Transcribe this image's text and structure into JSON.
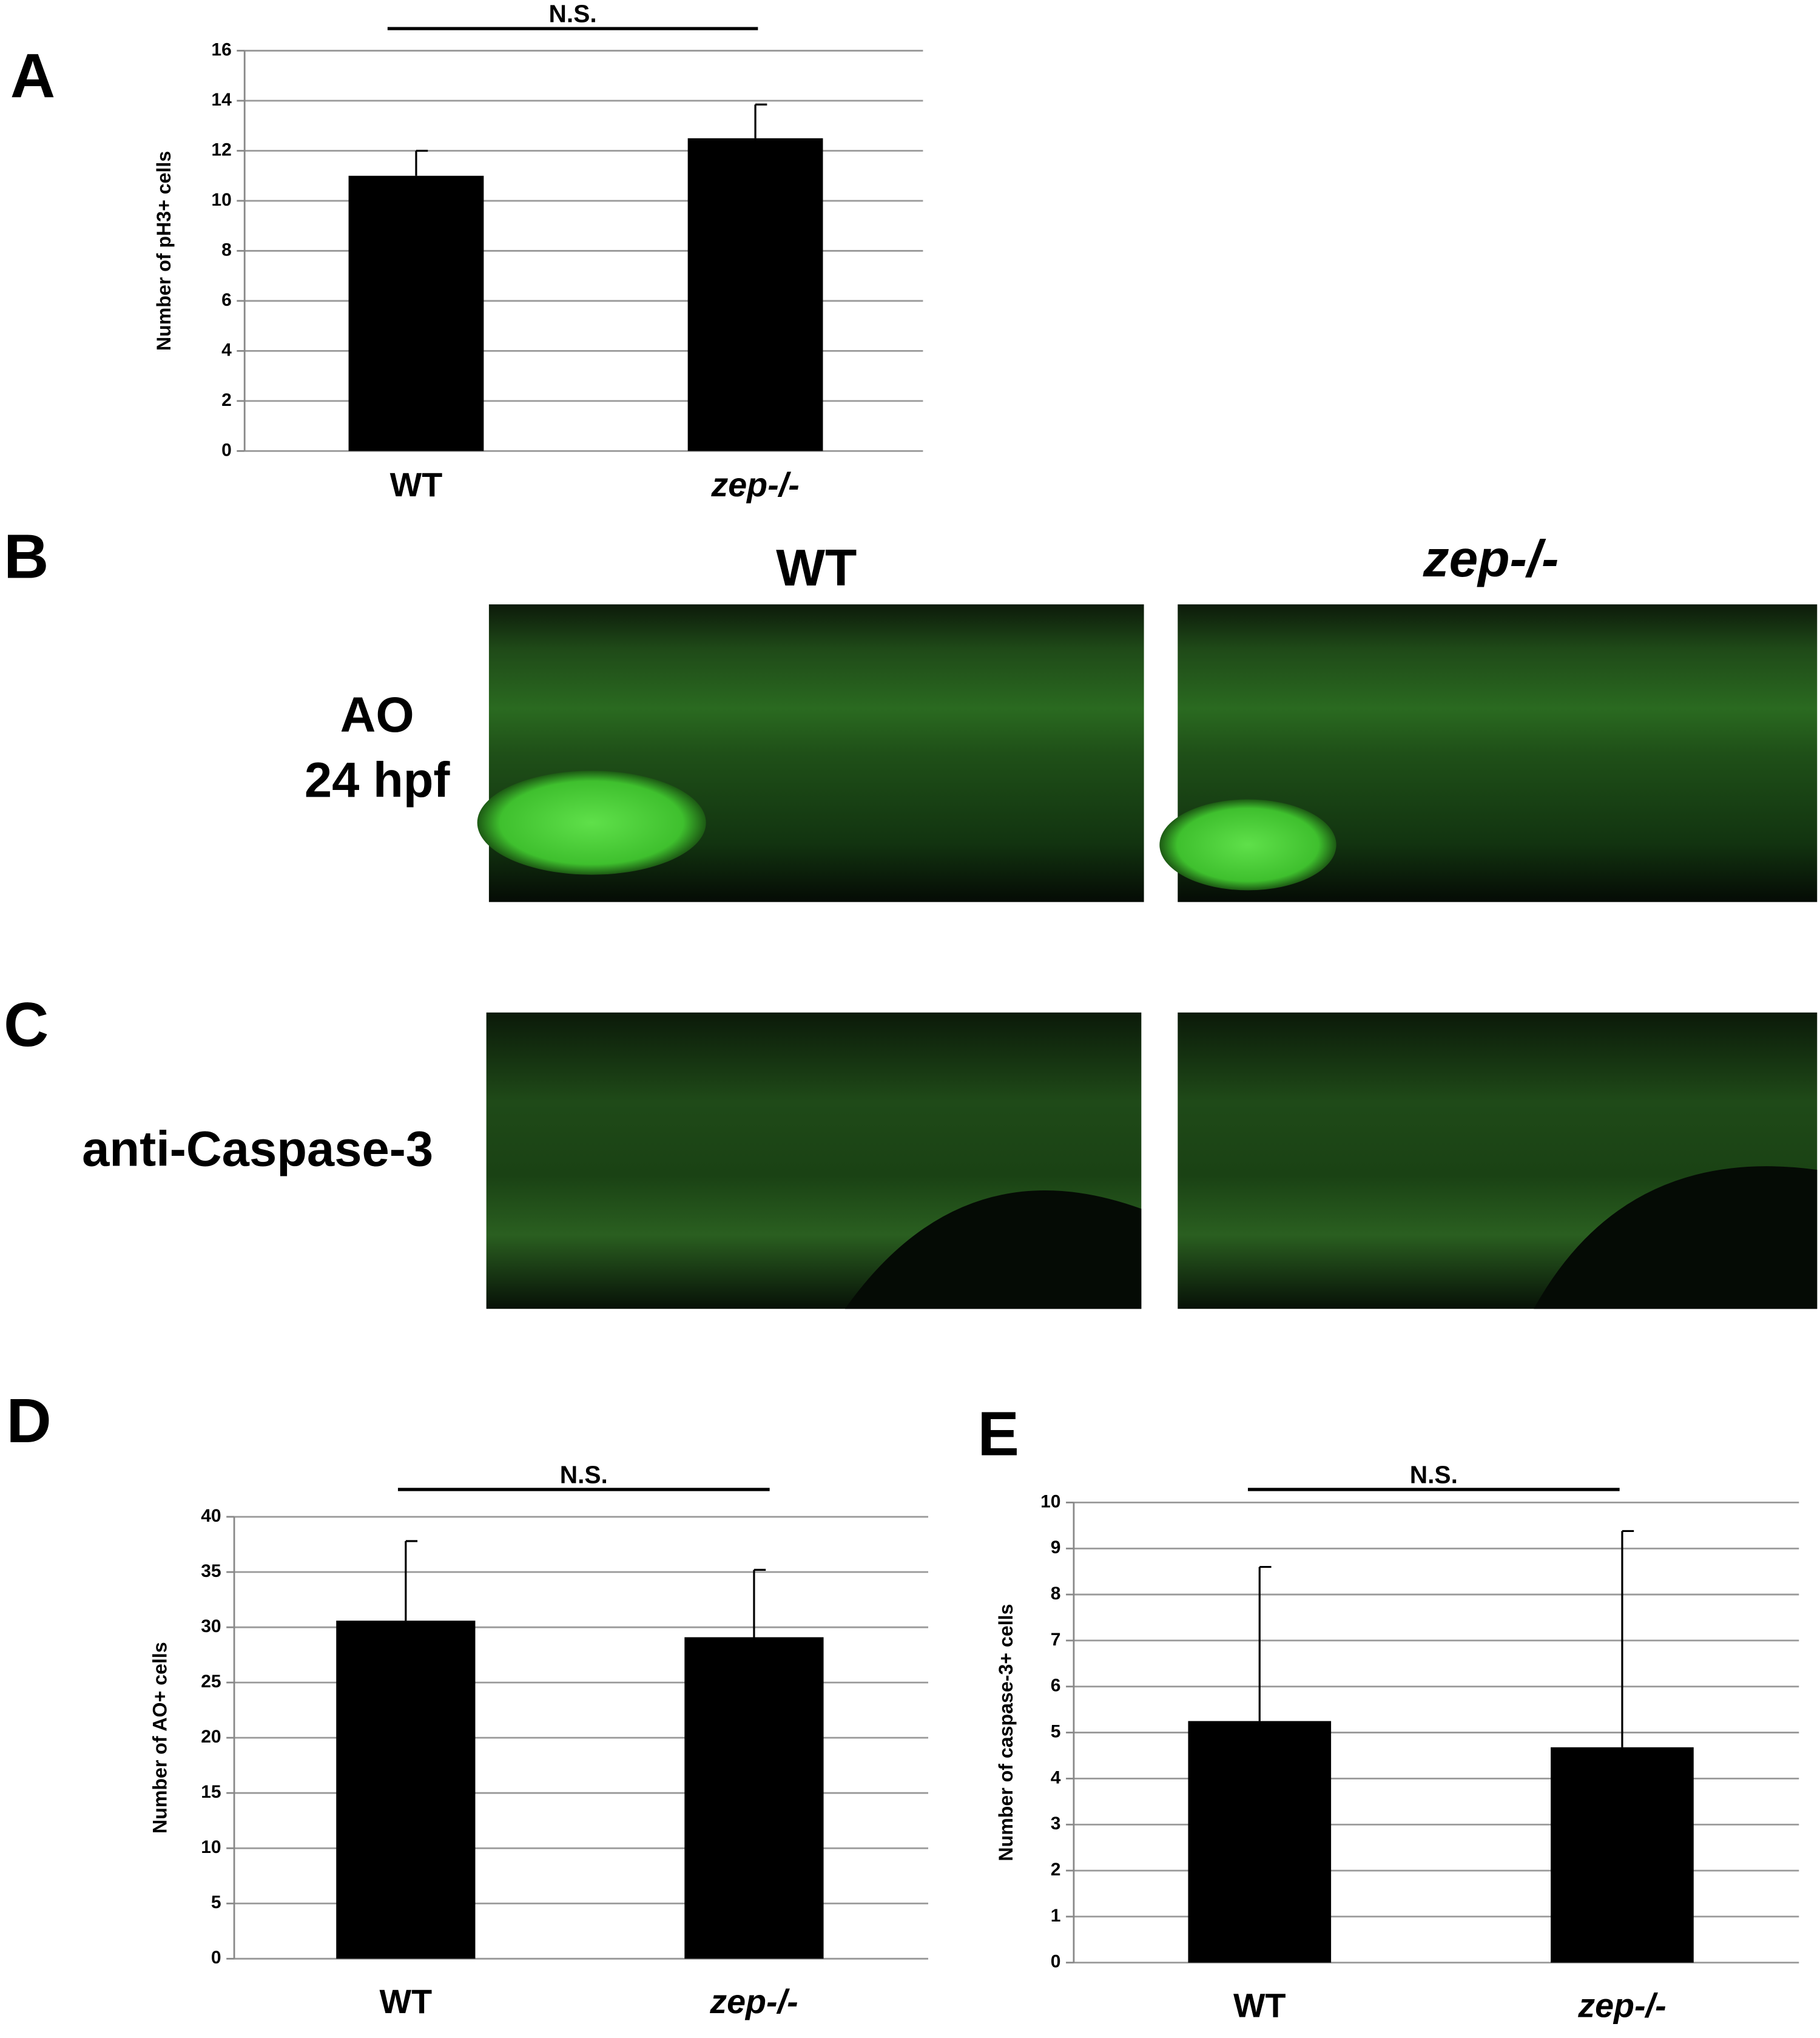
{
  "panel_labels": [
    "A",
    "B",
    "C",
    "D",
    "E"
  ],
  "images": {
    "columns": [
      "WT",
      "zep-/-"
    ],
    "rows": [
      [
        "AO",
        "24 hpf"
      ],
      [
        "anti-Caspase-3"
      ]
    ]
  },
  "chart_data": [
    {
      "type": "bar",
      "y_label": "Number of pH3+ cells",
      "annotation": "N.S.",
      "categories": [
        "WT",
        "zep-/-"
      ],
      "values": [
        11.0,
        12.5
      ],
      "errors": [
        1.0,
        1.35
      ],
      "color": "#000000",
      "ylim": [
        0,
        16
      ],
      "yticks": [
        0,
        2,
        4,
        6,
        8,
        10,
        12,
        14,
        16
      ],
      "grid": true
    },
    {
      "type": "bar",
      "y_label": "Number of AO+ cells",
      "annotation": "N.S.",
      "categories": [
        "WT",
        "zep-/-"
      ],
      "values": [
        30.6,
        29.1
      ],
      "errors": [
        7.2,
        6.1
      ],
      "color": "#000000",
      "ylim": [
        0,
        40
      ],
      "yticks": [
        0,
        5,
        10,
        15,
        20,
        25,
        30,
        35,
        40
      ],
      "grid": true
    },
    {
      "type": "bar",
      "y_label": "Number of caspase-3+ cells",
      "annotation": "N.S.",
      "categories": [
        "WT",
        "zep-/-"
      ],
      "values": [
        5.25,
        4.68
      ],
      "errors": [
        3.35,
        4.7
      ],
      "color": "#000000",
      "ylim": [
        0,
        10
      ],
      "yticks": [
        0,
        1,
        2,
        3,
        4,
        5,
        6,
        7,
        8,
        9,
        10
      ],
      "grid": true
    }
  ]
}
